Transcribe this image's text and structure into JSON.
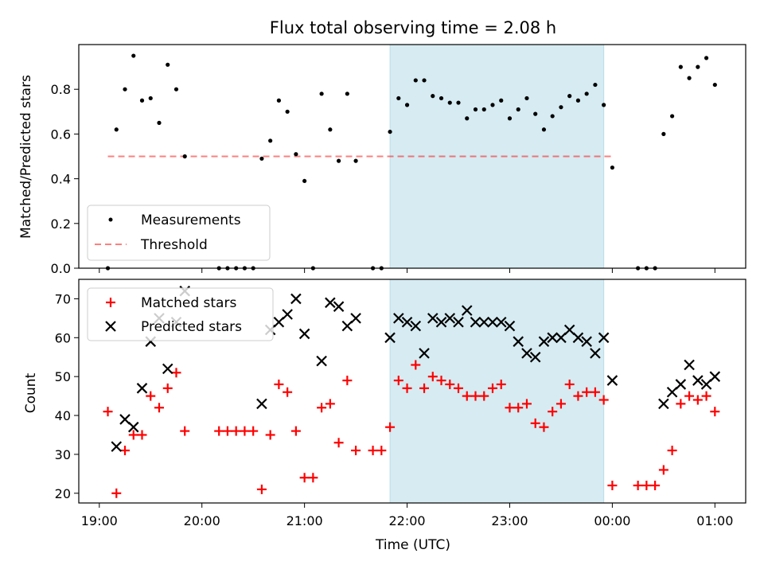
{
  "title": "Flux total observing time = 2.08 h",
  "colors": {
    "shade": "#add8e6",
    "measurement": "#000000",
    "threshold": "#ff0000",
    "matched": "#ff0000",
    "predicted": "#000000"
  },
  "chart_data": [
    {
      "type": "scatter",
      "ylabel": "Matched/Predicted stars",
      "ylim": [
        0,
        1.0
      ],
      "yticks": [
        0.0,
        0.2,
        0.4,
        0.6,
        0.8
      ],
      "ytick_labels": [
        "0.0",
        "0.2",
        "0.4",
        "0.6",
        "0.8"
      ],
      "shaded_interval": [
        "21:50",
        "23:55"
      ],
      "legend": {
        "placement": "bottom-left",
        "entries": [
          "Measurements",
          "Threshold"
        ]
      },
      "threshold": {
        "name": "Threshold",
        "value": 0.5,
        "x_range": [
          "19:05",
          "00:00"
        ],
        "style": "dashed"
      },
      "series": [
        {
          "name": "Measurements",
          "marker": "dot",
          "points": [
            [
              "19:05",
              0.0
            ],
            [
              "19:10",
              0.62
            ],
            [
              "19:15",
              0.8
            ],
            [
              "19:20",
              0.95
            ],
            [
              "19:25",
              0.75
            ],
            [
              "19:30",
              0.76
            ],
            [
              "19:35",
              0.65
            ],
            [
              "19:40",
              0.91
            ],
            [
              "19:45",
              0.8
            ],
            [
              "19:50",
              0.5
            ],
            [
              "20:10",
              0.0
            ],
            [
              "20:15",
              0.0
            ],
            [
              "20:20",
              0.0
            ],
            [
              "20:25",
              0.0
            ],
            [
              "20:30",
              0.0
            ],
            [
              "20:35",
              0.49
            ],
            [
              "20:40",
              0.57
            ],
            [
              "20:45",
              0.75
            ],
            [
              "20:50",
              0.7
            ],
            [
              "20:55",
              0.51
            ],
            [
              "21:00",
              0.39
            ],
            [
              "21:05",
              0.0
            ],
            [
              "21:10",
              0.78
            ],
            [
              "21:15",
              0.62
            ],
            [
              "21:20",
              0.48
            ],
            [
              "21:25",
              0.78
            ],
            [
              "21:30",
              0.48
            ],
            [
              "21:40",
              0.0
            ],
            [
              "21:45",
              0.0
            ],
            [
              "21:50",
              0.61
            ],
            [
              "21:55",
              0.76
            ],
            [
              "22:00",
              0.73
            ],
            [
              "22:05",
              0.84
            ],
            [
              "22:10",
              0.84
            ],
            [
              "22:15",
              0.77
            ],
            [
              "22:20",
              0.76
            ],
            [
              "22:25",
              0.74
            ],
            [
              "22:30",
              0.74
            ],
            [
              "22:35",
              0.67
            ],
            [
              "22:40",
              0.71
            ],
            [
              "22:45",
              0.71
            ],
            [
              "22:50",
              0.73
            ],
            [
              "22:55",
              0.75
            ],
            [
              "23:00",
              0.67
            ],
            [
              "23:05",
              0.71
            ],
            [
              "23:10",
              0.76
            ],
            [
              "23:15",
              0.69
            ],
            [
              "23:20",
              0.62
            ],
            [
              "23:25",
              0.68
            ],
            [
              "23:30",
              0.72
            ],
            [
              "23:35",
              0.77
            ],
            [
              "23:40",
              0.75
            ],
            [
              "23:45",
              0.78
            ],
            [
              "23:50",
              0.82
            ],
            [
              "23:55",
              0.73
            ],
            [
              "00:00",
              0.45
            ],
            [
              "00:15",
              0.0
            ],
            [
              "00:20",
              0.0
            ],
            [
              "00:25",
              0.0
            ],
            [
              "00:30",
              0.6
            ],
            [
              "00:35",
              0.68
            ],
            [
              "00:40",
              0.9
            ],
            [
              "00:45",
              0.85
            ],
            [
              "00:50",
              0.9
            ],
            [
              "00:55",
              0.94
            ],
            [
              "01:00",
              0.82
            ]
          ]
        }
      ]
    },
    {
      "type": "scatter",
      "xlabel": "Time (UTC)",
      "ylabel": "Count",
      "ylim": [
        17.5,
        75
      ],
      "yticks": [
        20,
        30,
        40,
        50,
        60,
        70
      ],
      "ytick_labels": [
        "20",
        "30",
        "40",
        "50",
        "60",
        "70"
      ],
      "xlim": [
        "18:48",
        "01:18"
      ],
      "xticks": [
        "19:00",
        "20:00",
        "21:00",
        "22:00",
        "23:00",
        "00:00",
        "01:00"
      ],
      "shaded_interval": [
        "21:50",
        "23:55"
      ],
      "legend": {
        "placement": "top-left",
        "entries": [
          "Matched stars",
          "Predicted stars"
        ]
      },
      "series": [
        {
          "name": "Matched stars",
          "marker": "plus",
          "points": [
            [
              "19:05",
              41
            ],
            [
              "19:10",
              20
            ],
            [
              "19:15",
              31
            ],
            [
              "19:20",
              35
            ],
            [
              "19:25",
              35
            ],
            [
              "19:30",
              45
            ],
            [
              "19:35",
              42
            ],
            [
              "19:40",
              47
            ],
            [
              "19:45",
              51
            ],
            [
              "19:50",
              36
            ],
            [
              "20:10",
              36
            ],
            [
              "20:15",
              36
            ],
            [
              "20:20",
              36
            ],
            [
              "20:25",
              36
            ],
            [
              "20:30",
              36
            ],
            [
              "20:35",
              21
            ],
            [
              "20:40",
              35
            ],
            [
              "20:45",
              48
            ],
            [
              "20:50",
              46
            ],
            [
              "20:55",
              36
            ],
            [
              "21:00",
              24
            ],
            [
              "21:05",
              24
            ],
            [
              "21:10",
              42
            ],
            [
              "21:15",
              43
            ],
            [
              "21:20",
              33
            ],
            [
              "21:25",
              49
            ],
            [
              "21:30",
              31
            ],
            [
              "21:40",
              31
            ],
            [
              "21:45",
              31
            ],
            [
              "21:50",
              37
            ],
            [
              "21:55",
              49
            ],
            [
              "22:00",
              47
            ],
            [
              "22:05",
              53
            ],
            [
              "22:10",
              47
            ],
            [
              "22:15",
              50
            ],
            [
              "22:20",
              49
            ],
            [
              "22:25",
              48
            ],
            [
              "22:30",
              47
            ],
            [
              "22:35",
              45
            ],
            [
              "22:40",
              45
            ],
            [
              "22:45",
              45
            ],
            [
              "22:50",
              47
            ],
            [
              "22:55",
              48
            ],
            [
              "23:00",
              42
            ],
            [
              "23:05",
              42
            ],
            [
              "23:10",
              43
            ],
            [
              "23:15",
              38
            ],
            [
              "23:20",
              37
            ],
            [
              "23:25",
              41
            ],
            [
              "23:30",
              43
            ],
            [
              "23:35",
              48
            ],
            [
              "23:40",
              45
            ],
            [
              "23:45",
              46
            ],
            [
              "23:50",
              46
            ],
            [
              "23:55",
              44
            ],
            [
              "00:00",
              22
            ],
            [
              "00:15",
              22
            ],
            [
              "00:20",
              22
            ],
            [
              "00:25",
              22
            ],
            [
              "00:30",
              26
            ],
            [
              "00:35",
              31
            ],
            [
              "00:40",
              43
            ],
            [
              "00:45",
              45
            ],
            [
              "00:50",
              44
            ],
            [
              "00:55",
              45
            ],
            [
              "01:00",
              41
            ]
          ]
        },
        {
          "name": "Predicted stars",
          "marker": "x",
          "points": [
            [
              "19:10",
              32
            ],
            [
              "19:15",
              39
            ],
            [
              "19:20",
              37
            ],
            [
              "19:25",
              47
            ],
            [
              "19:30",
              59
            ],
            [
              "19:35",
              65
            ],
            [
              "19:40",
              52
            ],
            [
              "19:45",
              64
            ],
            [
              "19:50",
              72
            ],
            [
              "20:35",
              43
            ],
            [
              "20:40",
              62
            ],
            [
              "20:45",
              64
            ],
            [
              "20:50",
              66
            ],
            [
              "20:55",
              70
            ],
            [
              "21:00",
              61
            ],
            [
              "21:10",
              54
            ],
            [
              "21:15",
              69
            ],
            [
              "21:20",
              68
            ],
            [
              "21:25",
              63
            ],
            [
              "21:30",
              65
            ],
            [
              "21:50",
              60
            ],
            [
              "21:55",
              65
            ],
            [
              "22:00",
              64
            ],
            [
              "22:05",
              63
            ],
            [
              "22:10",
              56
            ],
            [
              "22:15",
              65
            ],
            [
              "22:20",
              64
            ],
            [
              "22:25",
              65
            ],
            [
              "22:30",
              64
            ],
            [
              "22:35",
              67
            ],
            [
              "22:40",
              64
            ],
            [
              "22:45",
              64
            ],
            [
              "22:50",
              64
            ],
            [
              "22:55",
              64
            ],
            [
              "23:00",
              63
            ],
            [
              "23:05",
              59
            ],
            [
              "23:10",
              56
            ],
            [
              "23:15",
              55
            ],
            [
              "23:20",
              59
            ],
            [
              "23:25",
              60
            ],
            [
              "23:30",
              60
            ],
            [
              "23:35",
              62
            ],
            [
              "23:40",
              60
            ],
            [
              "23:45",
              59
            ],
            [
              "23:50",
              56
            ],
            [
              "23:55",
              60
            ],
            [
              "00:00",
              49
            ],
            [
              "00:30",
              43
            ],
            [
              "00:35",
              46
            ],
            [
              "00:40",
              48
            ],
            [
              "00:45",
              53
            ],
            [
              "00:50",
              49
            ],
            [
              "00:55",
              48
            ],
            [
              "01:00",
              50
            ]
          ]
        }
      ]
    }
  ]
}
